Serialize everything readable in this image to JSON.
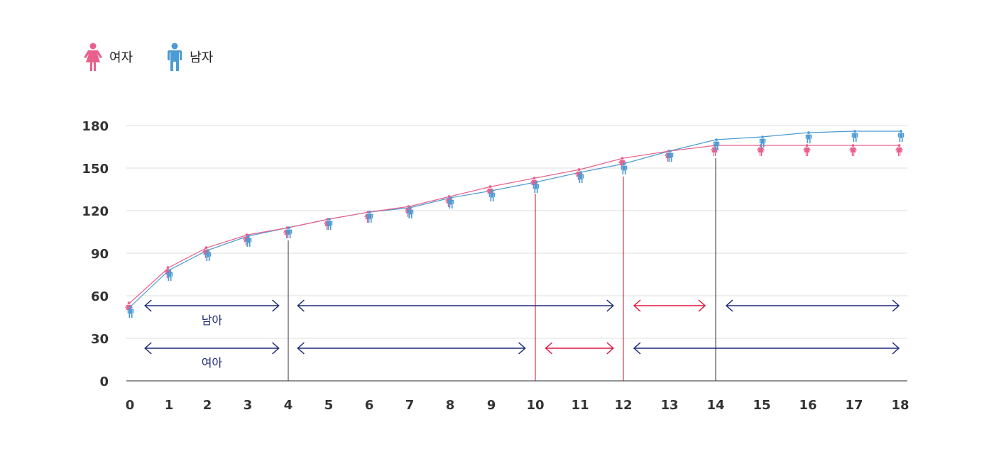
{
  "legend": {
    "female_label": "여자",
    "male_label": "남자",
    "female_icon": "female-person-icon",
    "male_icon": "male-person-icon"
  },
  "colors": {
    "female": "#e8618c",
    "male": "#4b9bd4",
    "bracket_blue": "#1b2a78",
    "bracket_red": "#e0173f",
    "vline_dark": "#333333",
    "vline_red": "#c8102e",
    "grid": "#dcdcdc"
  },
  "chart_data": {
    "type": "line",
    "x": [
      0,
      1,
      2,
      3,
      4,
      5,
      6,
      7,
      8,
      9,
      10,
      11,
      12,
      13,
      14,
      15,
      16,
      17,
      18
    ],
    "series": [
      {
        "name": "여자",
        "values": [
          55,
          80,
          94,
          103,
          108,
          114,
          119,
          123,
          130,
          137,
          143,
          149,
          157,
          162,
          166,
          166,
          166,
          166,
          166
        ]
      },
      {
        "name": "남자",
        "values": [
          52,
          78,
          92,
          102,
          108,
          114,
          119,
          122,
          129,
          134,
          140,
          147,
          153,
          162,
          170,
          172,
          175,
          176,
          176
        ]
      }
    ],
    "ylim": [
      0,
      180
    ],
    "yticks": [
      0,
      30,
      60,
      90,
      120,
      150,
      180
    ],
    "grid": true,
    "vlines": [
      {
        "x": 4,
        "y_top": 99,
        "color": "dark"
      },
      {
        "x": 10,
        "y_top": 132,
        "color": "red"
      },
      {
        "x": 12,
        "y_top": 144,
        "color": "red"
      },
      {
        "x": 14,
        "y_top": 157,
        "color": "dark"
      }
    ],
    "brackets": [
      {
        "row": "male",
        "x0": 0.35,
        "x1": 3.8,
        "y": 52,
        "color": "blue",
        "label": "남아"
      },
      {
        "row": "male",
        "x0": 4.2,
        "x1": 11.8,
        "y": 52,
        "color": "blue"
      },
      {
        "row": "male",
        "x0": 12.2,
        "x1": 13.8,
        "y": 52,
        "color": "red"
      },
      {
        "row": "male",
        "x0": 14.2,
        "x1": 18,
        "y": 52,
        "color": "blue"
      },
      {
        "row": "female",
        "x0": 0.35,
        "x1": 3.8,
        "y": 22,
        "color": "blue",
        "label": "여아"
      },
      {
        "row": "female",
        "x0": 4.2,
        "x1": 9.8,
        "y": 22,
        "color": "blue"
      },
      {
        "row": "female",
        "x0": 10.2,
        "x1": 11.8,
        "y": 22,
        "color": "red"
      },
      {
        "row": "female",
        "x0": 12.2,
        "x1": 18,
        "y": 22,
        "color": "blue"
      }
    ]
  }
}
